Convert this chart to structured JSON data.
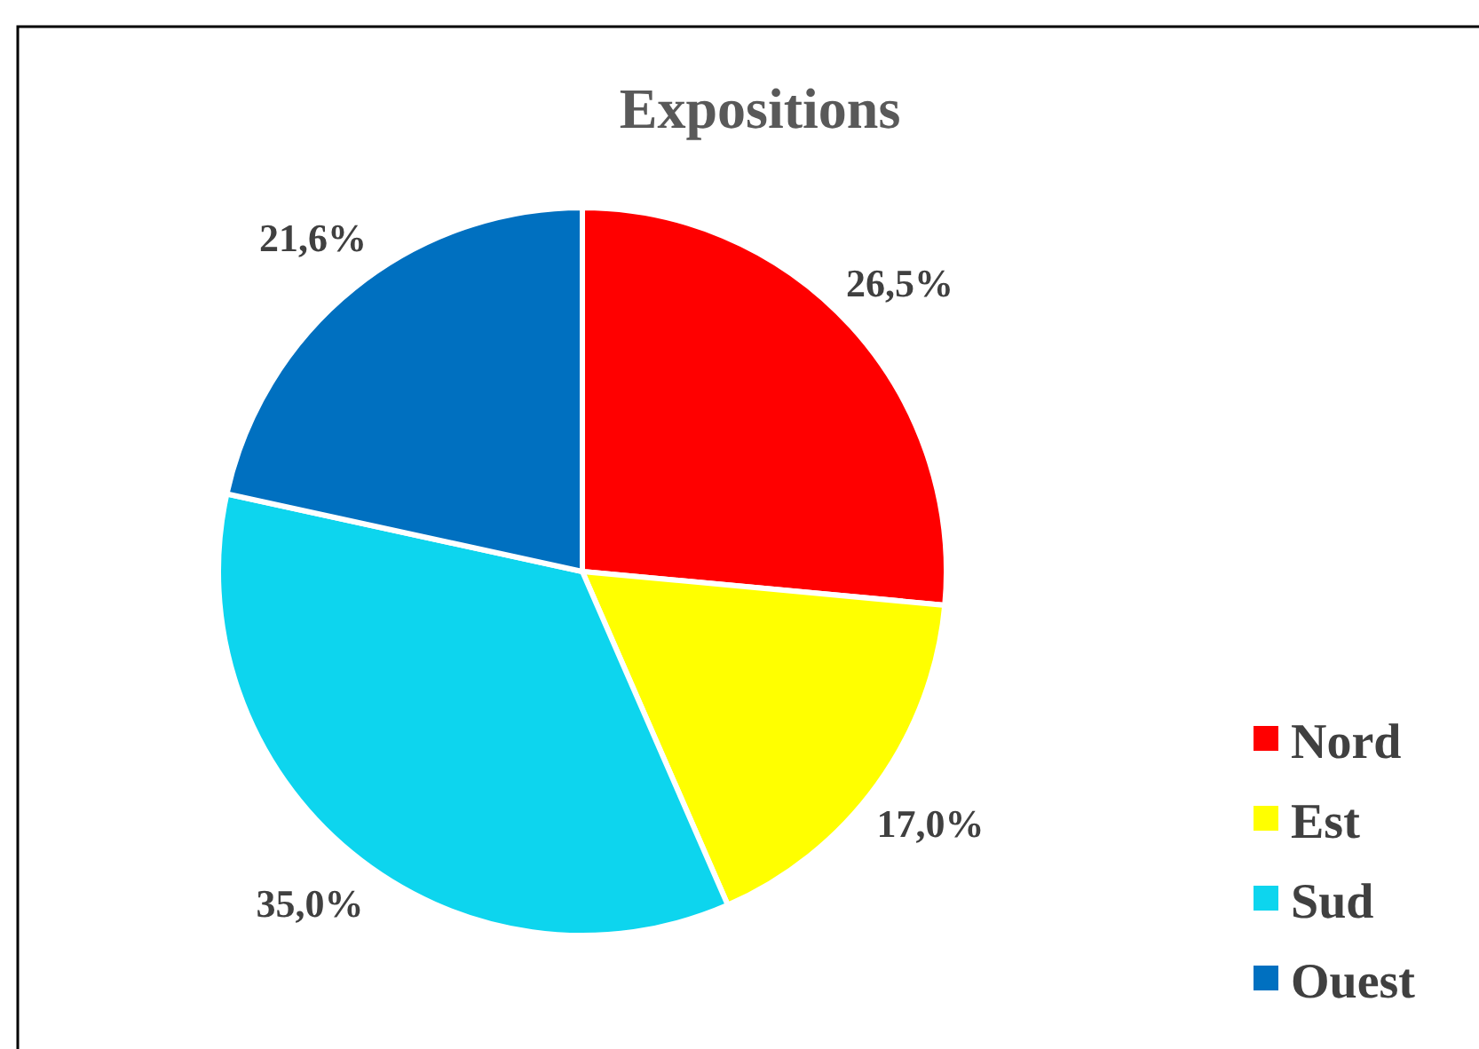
{
  "chart_data": {
    "type": "pie",
    "title": "Expositions",
    "categories": [
      "Nord",
      "Est",
      "Sud",
      "Ouest"
    ],
    "values": [
      26.5,
      17.0,
      35.0,
      21.6
    ],
    "colors": [
      "#ff0000",
      "#ffff00",
      "#0dd5ee",
      "#0070c0"
    ],
    "value_labels": [
      "26,5%",
      "17,0%",
      "35,0%",
      "21,6%"
    ],
    "legend": "right"
  }
}
